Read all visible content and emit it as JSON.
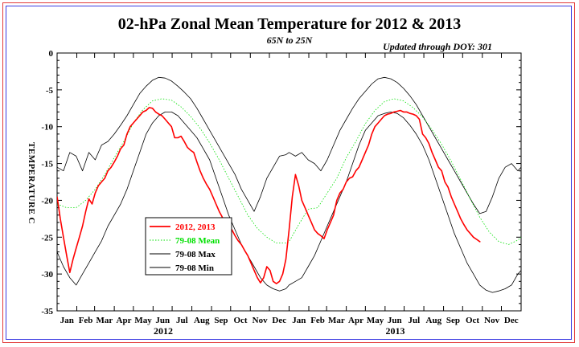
{
  "chart_data": {
    "type": "line",
    "title": "02-hPa Zonal Mean Temperature for 2012 & 2013",
    "subtitle": "65N to 25N",
    "update_note": "Updated through DOY: 301",
    "ylabel": "TEMPERATURE C",
    "xlabel": "",
    "ylim": [
      -35,
      0
    ],
    "yticks": [
      0,
      -5,
      -10,
      -15,
      -20,
      -25,
      -30,
      -35
    ],
    "xlim": [
      0,
      730
    ],
    "month_labels": [
      "Jan",
      "Feb",
      "Mar",
      "Apr",
      "May",
      "Jun",
      "Jul",
      "Aug",
      "Sep",
      "Oct",
      "Nov",
      "Dec",
      "Jan",
      "Feb",
      "Mar",
      "Apr",
      "May",
      "Jun",
      "Jul",
      "Aug",
      "Sep",
      "Oct",
      "Nov",
      "Dec"
    ],
    "month_starts": [
      0,
      31,
      59,
      90,
      120,
      151,
      181,
      212,
      243,
      273,
      304,
      334,
      365,
      396,
      424,
      455,
      485,
      516,
      546,
      577,
      608,
      638,
      669,
      699
    ],
    "years": [
      {
        "label": "2012",
        "x": 167
      },
      {
        "label": "2013",
        "x": 532
      }
    ],
    "legend": {
      "placement": "lower-left",
      "entries": [
        "2012, 2013",
        "79-08 Mean",
        "79-08 Max",
        "79-08 Min"
      ]
    },
    "series": [
      {
        "name": "2012, 2013",
        "color": "#ff0000",
        "style": "solid",
        "x": [
          0,
          5,
          10,
          15,
          20,
          25,
          30,
          35,
          40,
          45,
          50,
          55,
          60,
          65,
          70,
          75,
          80,
          85,
          90,
          95,
          100,
          105,
          110,
          115,
          120,
          125,
          130,
          135,
          140,
          145,
          150,
          155,
          160,
          165,
          170,
          175,
          180,
          185,
          190,
          195,
          200,
          205,
          210,
          215,
          220,
          225,
          230,
          235,
          240,
          245,
          250,
          255,
          260,
          265,
          270,
          275,
          280,
          285,
          290,
          295,
          300,
          305,
          310,
          315,
          320,
          325,
          330,
          335,
          340,
          345,
          350,
          355,
          360,
          365,
          370,
          375,
          380,
          385,
          390,
          395,
          400,
          405,
          410,
          415,
          420,
          425,
          430,
          435,
          440,
          445,
          450,
          455,
          460,
          465,
          470,
          475,
          480,
          485,
          490,
          495,
          500,
          505,
          510,
          515,
          520,
          525,
          530,
          535,
          540,
          545,
          550,
          555,
          560,
          565,
          570,
          575,
          580,
          585,
          590,
          595,
          600,
          605,
          610,
          615,
          620,
          625,
          630,
          635,
          640,
          645,
          650,
          655,
          660,
          665,
          666
        ],
        "y": [
          -19.5,
          -22.5,
          -25.0,
          -27.5,
          -29.8,
          -28.0,
          -26.5,
          -25.0,
          -23.5,
          -21.5,
          -19.8,
          -20.5,
          -19.0,
          -18.0,
          -17.5,
          -17.0,
          -16.0,
          -15.5,
          -14.8,
          -14.0,
          -13.0,
          -12.5,
          -11.0,
          -10.0,
          -9.5,
          -9.0,
          -8.5,
          -8.0,
          -7.8,
          -7.4,
          -7.5,
          -8.0,
          -8.3,
          -8.5,
          -9.0,
          -9.5,
          -10.0,
          -11.5,
          -11.5,
          -11.3,
          -12.0,
          -12.8,
          -13.2,
          -13.5,
          -14.8,
          -16.0,
          -17.0,
          -17.8,
          -18.5,
          -19.5,
          -20.5,
          -21.5,
          -22.3,
          -23.0,
          -23.5,
          -24.0,
          -24.8,
          -25.5,
          -26.0,
          -26.8,
          -27.5,
          -28.5,
          -29.5,
          -30.5,
          -31.2,
          -30.5,
          -29.0,
          -29.5,
          -31.0,
          -31.3,
          -31.0,
          -30.0,
          -28.0,
          -24.0,
          -19.5,
          -16.5,
          -18.0,
          -20.0,
          -21.0,
          -22.0,
          -23.0,
          -24.0,
          -24.5,
          -24.8,
          -25.2,
          -24.0,
          -23.0,
          -22.0,
          -20.0,
          -19.0,
          -18.5,
          -17.5,
          -17.0,
          -16.8,
          -16.0,
          -15.5,
          -14.5,
          -13.5,
          -12.5,
          -11.0,
          -10.0,
          -9.5,
          -9.0,
          -8.5,
          -8.3,
          -8.2,
          -8.0,
          -7.9,
          -7.8,
          -8.0,
          -8.0,
          -8.2,
          -8.3,
          -8.5,
          -9.0,
          -11.0,
          -11.5,
          -12.3,
          -13.5,
          -14.5,
          -15.5,
          -16.0,
          -17.5,
          -18.2,
          -19.5,
          -20.5,
          -21.5,
          -22.5,
          -23.3,
          -24.0,
          -24.5,
          -25.0,
          -25.3,
          -25.6,
          -25.6
        ]
      },
      {
        "name": "79-08 Mean",
        "color": "#00e000",
        "style": "dotted",
        "x": [
          0,
          15,
          30,
          45,
          60,
          75,
          90,
          105,
          120,
          135,
          150,
          165,
          180,
          195,
          210,
          225,
          240,
          255,
          270,
          285,
          300,
          315,
          330,
          345,
          360,
          365,
          380,
          395,
          410,
          425,
          440,
          455,
          470,
          485,
          500,
          515,
          530,
          545,
          560,
          575,
          590,
          605,
          620,
          635,
          650,
          665,
          680,
          695,
          710,
          725,
          730
        ],
        "y": [
          -20.5,
          -21.0,
          -21.0,
          -20.0,
          -18.5,
          -16.5,
          -14.2,
          -12.0,
          -9.5,
          -7.7,
          -6.5,
          -6.2,
          -6.4,
          -7.3,
          -8.6,
          -10.2,
          -12.2,
          -14.5,
          -17.0,
          -19.5,
          -22.0,
          -23.8,
          -25.0,
          -25.8,
          -25.8,
          -25.6,
          -23.3,
          -21.2,
          -21.0,
          -19.0,
          -17.0,
          -14.2,
          -12.0,
          -9.6,
          -7.8,
          -6.6,
          -6.2,
          -6.5,
          -7.4,
          -8.7,
          -10.4,
          -12.4,
          -14.7,
          -17.2,
          -19.8,
          -22.3,
          -24.3,
          -25.6,
          -26.0,
          -25.4,
          -25.0
        ]
      },
      {
        "name": "79-08 Max",
        "color": "#000000",
        "style": "solid",
        "x": [
          0,
          10,
          20,
          30,
          40,
          50,
          60,
          70,
          80,
          90,
          100,
          110,
          120,
          130,
          140,
          150,
          160,
          170,
          180,
          190,
          200,
          210,
          220,
          230,
          240,
          250,
          260,
          270,
          280,
          290,
          300,
          310,
          320,
          330,
          340,
          350,
          360,
          365,
          375,
          385,
          395,
          405,
          415,
          425,
          435,
          445,
          455,
          465,
          475,
          485,
          495,
          505,
          515,
          525,
          535,
          545,
          555,
          565,
          575,
          585,
          595,
          605,
          615,
          625,
          635,
          645,
          655,
          665,
          675,
          685,
          695,
          705,
          715,
          725,
          730
        ],
        "y": [
          -15.5,
          -16.0,
          -13.5,
          -14.0,
          -16.0,
          -13.5,
          -14.5,
          -12.5,
          -12.0,
          -11.0,
          -9.8,
          -8.5,
          -7.0,
          -5.5,
          -4.5,
          -3.7,
          -3.3,
          -3.4,
          -3.8,
          -4.5,
          -5.3,
          -6.2,
          -7.5,
          -9.0,
          -10.5,
          -12.0,
          -13.5,
          -15.0,
          -16.5,
          -18.5,
          -20.0,
          -21.5,
          -19.5,
          -17.0,
          -15.5,
          -14.0,
          -13.8,
          -13.5,
          -14.0,
          -13.5,
          -14.5,
          -15.0,
          -16.0,
          -14.5,
          -12.5,
          -10.5,
          -9.0,
          -7.5,
          -6.2,
          -5.2,
          -4.2,
          -3.5,
          -3.3,
          -3.5,
          -4.0,
          -4.8,
          -5.8,
          -7.0,
          -8.5,
          -10.0,
          -11.5,
          -13.0,
          -14.5,
          -16.0,
          -17.5,
          -19.0,
          -20.5,
          -21.8,
          -21.5,
          -19.5,
          -17.0,
          -15.5,
          -15.0,
          -16.0,
          -15.5
        ]
      },
      {
        "name": "79-08 Min",
        "color": "#000000",
        "style": "solid",
        "x": [
          0,
          10,
          20,
          30,
          40,
          50,
          60,
          70,
          80,
          90,
          100,
          110,
          120,
          130,
          140,
          150,
          160,
          170,
          180,
          190,
          200,
          210,
          220,
          230,
          240,
          250,
          260,
          270,
          280,
          290,
          300,
          310,
          320,
          330,
          340,
          350,
          360,
          365,
          375,
          385,
          395,
          405,
          415,
          425,
          435,
          445,
          455,
          465,
          475,
          485,
          495,
          505,
          515,
          525,
          535,
          545,
          555,
          565,
          575,
          585,
          595,
          605,
          615,
          625,
          635,
          645,
          655,
          665,
          675,
          685,
          695,
          705,
          715,
          725,
          730
        ],
        "y": [
          -27.0,
          -29.0,
          -30.5,
          -31.5,
          -30.0,
          -28.5,
          -27.0,
          -25.5,
          -23.5,
          -22.0,
          -20.5,
          -18.5,
          -16.0,
          -13.5,
          -11.0,
          -9.5,
          -8.5,
          -8.0,
          -8.0,
          -8.5,
          -9.5,
          -10.5,
          -11.5,
          -13.0,
          -14.5,
          -17.0,
          -19.5,
          -22.0,
          -24.0,
          -26.0,
          -27.5,
          -29.0,
          -30.5,
          -31.5,
          -32.0,
          -32.3,
          -32.0,
          -31.5,
          -31.0,
          -30.5,
          -29.0,
          -27.5,
          -25.5,
          -23.5,
          -21.5,
          -19.5,
          -17.5,
          -15.0,
          -12.5,
          -10.5,
          -9.5,
          -8.5,
          -8.2,
          -8.0,
          -8.2,
          -8.8,
          -9.8,
          -11.0,
          -12.5,
          -14.5,
          -17.0,
          -19.5,
          -22.0,
          -24.5,
          -26.5,
          -28.5,
          -30.0,
          -31.5,
          -32.2,
          -32.5,
          -32.3,
          -32.0,
          -31.5,
          -30.0,
          -29.5
        ]
      }
    ]
  }
}
